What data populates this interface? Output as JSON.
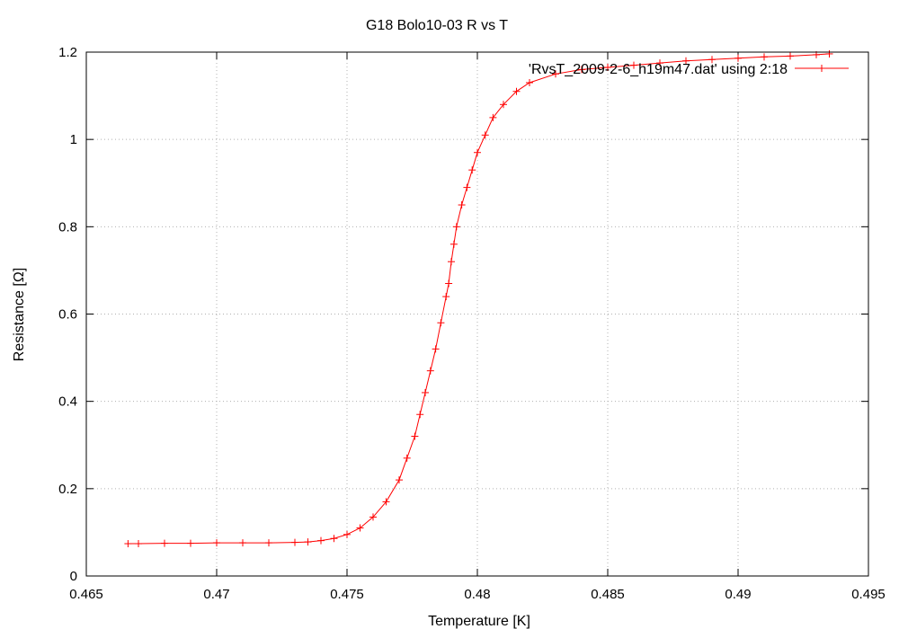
{
  "chart_data": {
    "type": "line",
    "title": "G18 Bolo10-03 R vs T",
    "xlabel": "Temperature [K]",
    "ylabel": "Resistance [Ω]",
    "xlim": [
      0.465,
      0.495
    ],
    "ylim": [
      0,
      1.2
    ],
    "xticks": [
      "0.465",
      "0.47",
      "0.475",
      "0.48",
      "0.485",
      "0.49",
      "0.495"
    ],
    "yticks": [
      "0",
      "0.2",
      "0.4",
      "0.6",
      "0.8",
      "1",
      "1.2"
    ],
    "grid": true,
    "legend_position": "top-right",
    "series": [
      {
        "name": "'RvsT_2009-2-6_h19m47.dat' using 2:18",
        "color": "#ff0000",
        "marker": "plus",
        "x": [
          0.4666,
          0.467,
          0.468,
          0.469,
          0.47,
          0.471,
          0.472,
          0.473,
          0.4735,
          0.474,
          0.4745,
          0.475,
          0.4755,
          0.476,
          0.4765,
          0.477,
          0.4773,
          0.4776,
          0.4778,
          0.478,
          0.4782,
          0.4784,
          0.4786,
          0.4788,
          0.4789,
          0.479,
          0.4791,
          0.4792,
          0.4794,
          0.4796,
          0.4798,
          0.48,
          0.4803,
          0.4806,
          0.481,
          0.4815,
          0.482,
          0.483,
          0.484,
          0.485,
          0.486,
          0.487,
          0.488,
          0.489,
          0.49,
          0.491,
          0.492,
          0.493,
          0.4935
        ],
        "y": [
          0.074,
          0.074,
          0.075,
          0.075,
          0.076,
          0.076,
          0.076,
          0.077,
          0.078,
          0.081,
          0.086,
          0.095,
          0.11,
          0.135,
          0.17,
          0.22,
          0.27,
          0.32,
          0.37,
          0.42,
          0.47,
          0.52,
          0.58,
          0.64,
          0.67,
          0.72,
          0.76,
          0.8,
          0.85,
          0.89,
          0.93,
          0.97,
          1.01,
          1.05,
          1.08,
          1.11,
          1.13,
          1.15,
          1.16,
          1.165,
          1.17,
          1.175,
          1.18,
          1.183,
          1.186,
          1.189,
          1.191,
          1.194,
          1.196
        ]
      }
    ]
  }
}
